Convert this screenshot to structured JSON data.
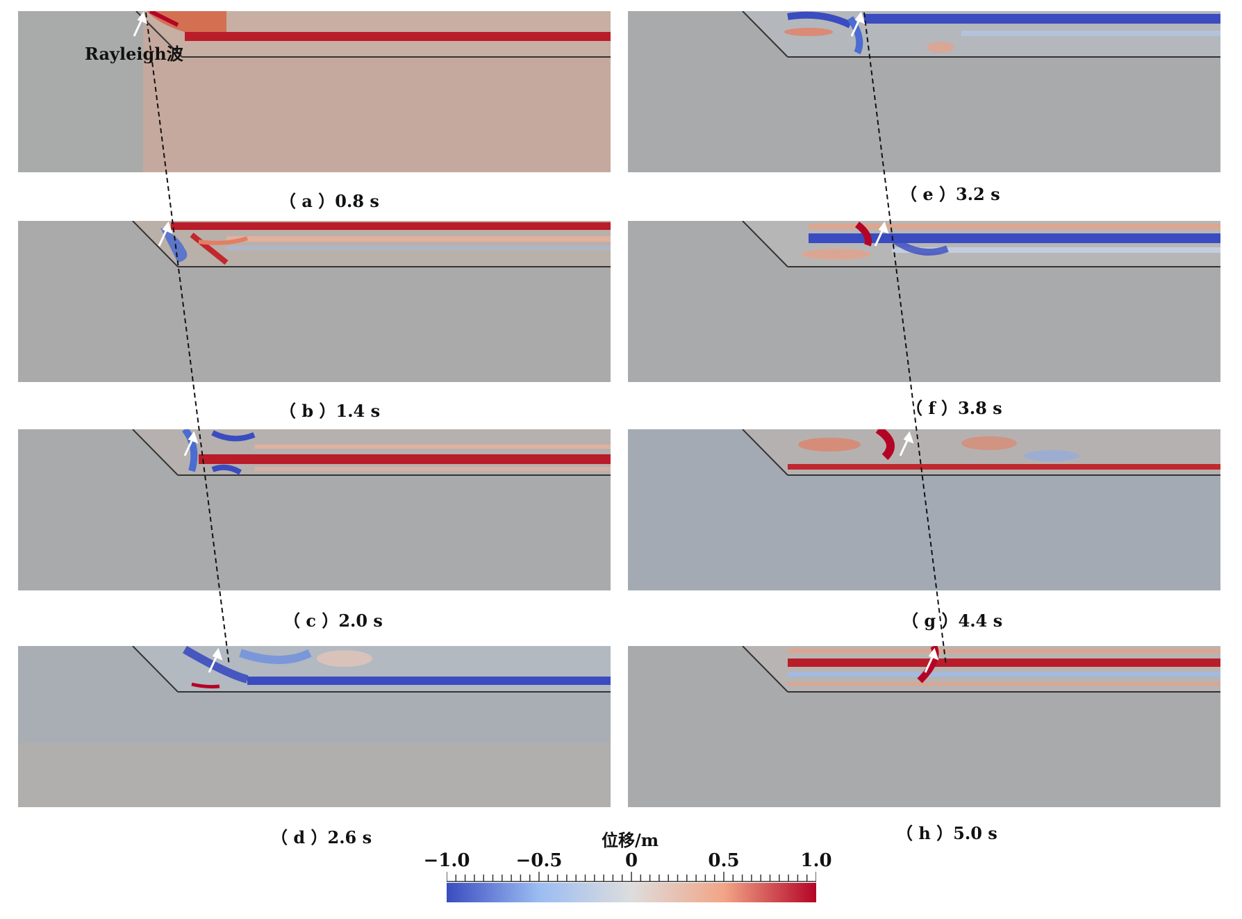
{
  "panels": [
    {
      "id": "a",
      "caption": "（ a ）0.8 s"
    },
    {
      "id": "b",
      "caption": "（ b ）1.4 s"
    },
    {
      "id": "c",
      "caption": "（ c ）2.0 s"
    },
    {
      "id": "d",
      "caption": "（ d ）2.6 s"
    },
    {
      "id": "e",
      "caption": "（ e ）3.2 s"
    },
    {
      "id": "f",
      "caption": "（ f ）3.8 s"
    },
    {
      "id": "g",
      "caption": "（ g ）4.4 s"
    },
    {
      "id": "h",
      "caption": "（ h ）5.0 s"
    }
  ],
  "annotation": {
    "rayleigh_label": "Rayleigh波"
  },
  "colorbar": {
    "title": "位移/m",
    "ticks": [
      "−1.0",
      "−0.5",
      "0",
      "0.5",
      "1.0"
    ],
    "min": -1.0,
    "max": 1.0,
    "colors": [
      "#3a4cc0",
      "#9bbcf2",
      "#dddddd",
      "#f1a586",
      "#b40426"
    ]
  }
}
